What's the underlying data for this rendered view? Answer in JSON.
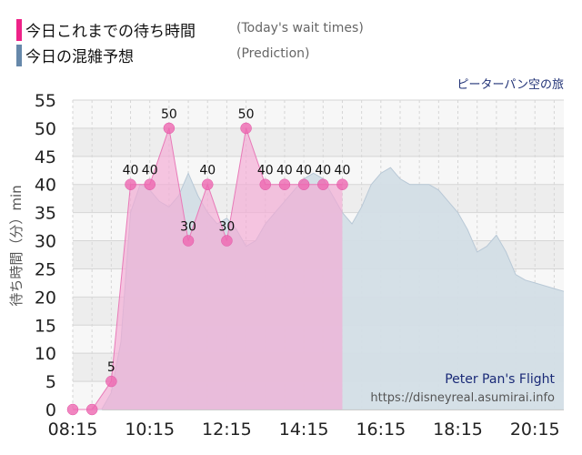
{
  "legend": {
    "actual": {
      "label": "今日これまでの待ち時間",
      "sub": "(Today's wait times)",
      "color": "#ee2288"
    },
    "prediction": {
      "label": "今日の混雑予想",
      "sub": "(Prediction)",
      "color": "#6688aa"
    }
  },
  "attraction_jp": "ピーターパン空の旅",
  "attraction_en": "Peter Pan's Flight",
  "source_url": "https://disneyreal.asumirai.info",
  "chart_data": {
    "type": "area",
    "ylabel": "待ち時間（分）min",
    "ylim": [
      0,
      55
    ],
    "xlim": [
      "08:15",
      "21:00"
    ],
    "y_ticks": [
      "0",
      "5",
      "10",
      "15",
      "20",
      "25",
      "30",
      "35",
      "40",
      "45",
      "50",
      "55"
    ],
    "x_ticks": [
      "08:15",
      "10:15",
      "12:15",
      "14:15",
      "16:15",
      "18:15",
      "20:15"
    ],
    "grid": true,
    "series": [
      {
        "name": "今日の混雑予想",
        "color": "#c5d3de",
        "points": [
          [
            "08:45",
            0
          ],
          [
            "09:00",
            0
          ],
          [
            "09:15",
            3
          ],
          [
            "09:30",
            12
          ],
          [
            "09:45",
            35
          ],
          [
            "10:00",
            40
          ],
          [
            "10:15",
            39
          ],
          [
            "10:30",
            37
          ],
          [
            "10:45",
            36
          ],
          [
            "11:00",
            38
          ],
          [
            "11:15",
            42
          ],
          [
            "11:30",
            38
          ],
          [
            "11:45",
            35
          ],
          [
            "12:00",
            33
          ],
          [
            "12:15",
            34
          ],
          [
            "12:30",
            32
          ],
          [
            "12:45",
            29
          ],
          [
            "13:00",
            30
          ],
          [
            "13:15",
            33
          ],
          [
            "13:30",
            35
          ],
          [
            "13:45",
            37
          ],
          [
            "14:00",
            39
          ],
          [
            "14:15",
            41
          ],
          [
            "14:30",
            42
          ],
          [
            "14:45",
            41
          ],
          [
            "15:00",
            38
          ],
          [
            "15:15",
            35
          ],
          [
            "15:30",
            33
          ],
          [
            "15:45",
            36
          ],
          [
            "16:00",
            40
          ],
          [
            "16:15",
            42
          ],
          [
            "16:30",
            43
          ],
          [
            "16:45",
            41
          ],
          [
            "17:00",
            40
          ],
          [
            "17:15",
            40
          ],
          [
            "17:30",
            40
          ],
          [
            "17:45",
            39
          ],
          [
            "18:00",
            37
          ],
          [
            "18:15",
            35
          ],
          [
            "18:30",
            32
          ],
          [
            "18:45",
            28
          ],
          [
            "19:00",
            29
          ],
          [
            "19:15",
            31
          ],
          [
            "19:30",
            28
          ],
          [
            "19:45",
            24
          ],
          [
            "20:00",
            23
          ],
          [
            "20:15",
            22.5
          ],
          [
            "20:30",
            22
          ],
          [
            "20:45",
            21.5
          ],
          [
            "21:00",
            21
          ]
        ]
      },
      {
        "name": "今日これまでの待ち時間",
        "color": "#ee55aa",
        "points": [
          [
            "08:15",
            0
          ],
          [
            "08:45",
            0
          ],
          [
            "09:15",
            5
          ],
          [
            "09:45",
            40
          ],
          [
            "10:15",
            40
          ],
          [
            "10:45",
            50
          ],
          [
            "11:15",
            30
          ],
          [
            "11:45",
            40
          ],
          [
            "12:15",
            30
          ],
          [
            "12:45",
            50
          ],
          [
            "13:15",
            40
          ],
          [
            "13:45",
            40
          ],
          [
            "14:15",
            40
          ],
          [
            "14:45",
            40
          ],
          [
            "15:15",
            40
          ]
        ],
        "labels": [
          "",
          "",
          "5",
          "40",
          "40",
          "50",
          "30",
          "40",
          "30",
          "50",
          "40",
          "40",
          "40",
          "40",
          "40"
        ]
      }
    ]
  }
}
